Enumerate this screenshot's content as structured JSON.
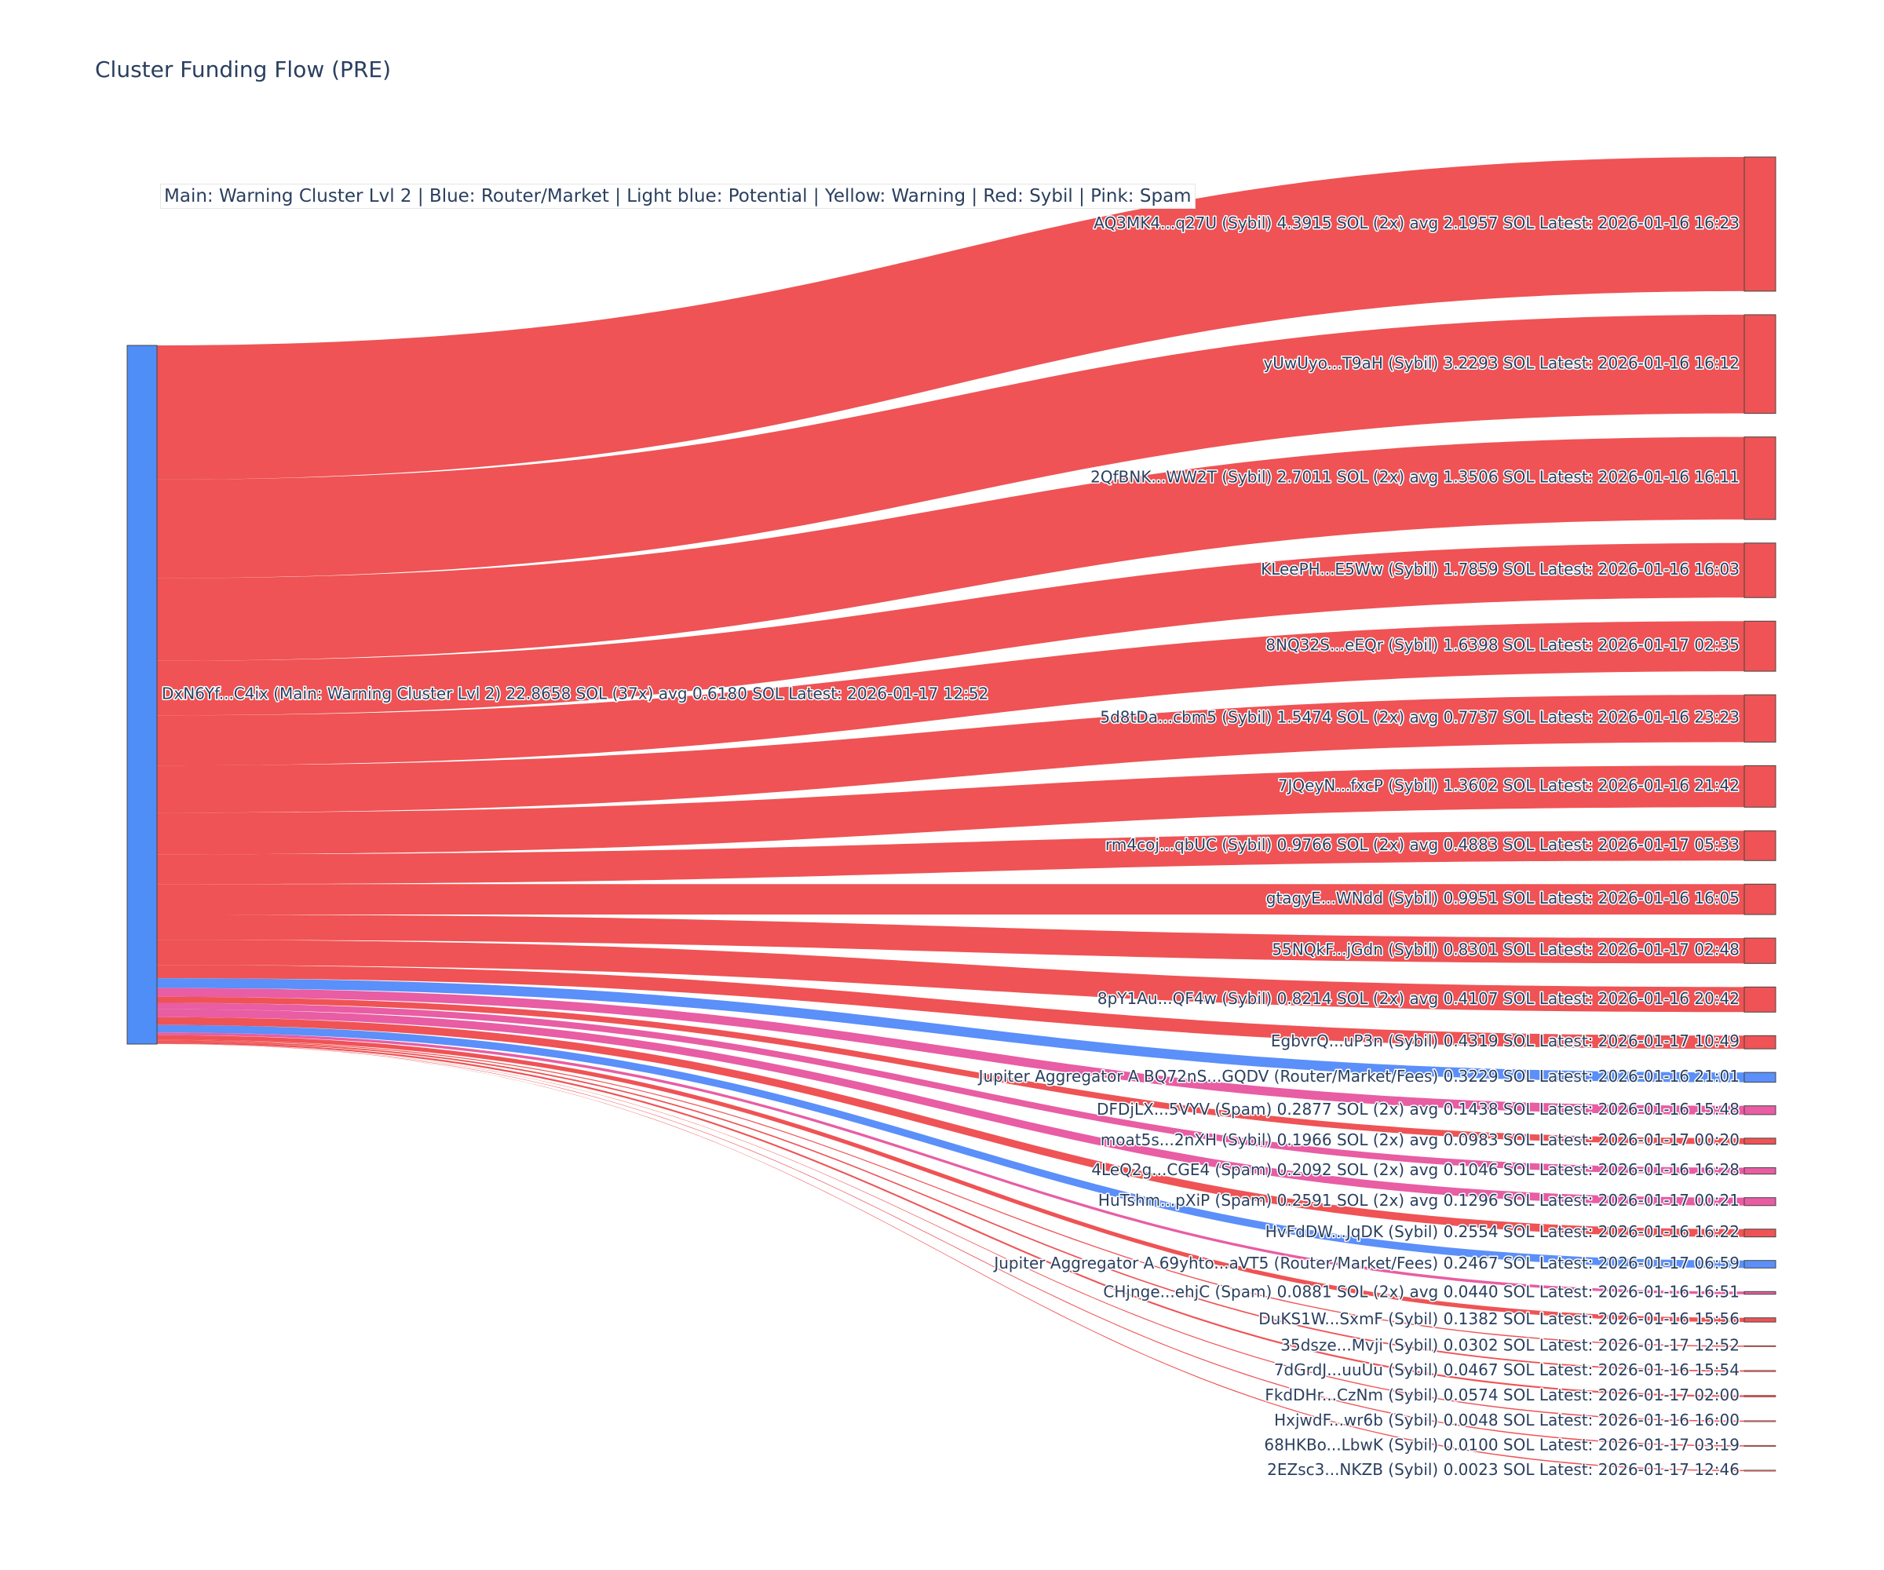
{
  "title": "Cluster Funding Flow (PRE)",
  "legend": "Main: Warning Cluster Lvl 2  |  Blue: Router/Market | Light blue: Potential | Yellow: Warning | Red: Sybil | Pink: Spam",
  "colors": {
    "router": "#5b8ff9",
    "sybil": "#ef5355",
    "spam": "#e85da3",
    "main": "#4f8ef7",
    "node_border": "#444444",
    "text": "#2a3f5f"
  },
  "chart_data": {
    "type": "sankey",
    "source": {
      "label": "DxN6Yf...C4ix (Main: Warning Cluster Lvl 2) 22.8658 SOL (37x) avg 0.6180 SOL Latest: 2026-01-17 12:52",
      "total": 22.8658,
      "category": "main"
    },
    "targets": [
      {
        "label": "AQ3MK4...q27U (Sybil) 4.3915 SOL (2x) avg 2.1957 SOL Latest: 2026-01-16 16:23",
        "value": 4.3915,
        "category": "sybil"
      },
      {
        "label": "yUwUyo...T9aH (Sybil) 3.2293 SOL Latest: 2026-01-16 16:12",
        "value": 3.2293,
        "category": "sybil"
      },
      {
        "label": "2QfBNK...WW2T (Sybil) 2.7011 SOL (2x) avg 1.3506 SOL Latest: 2026-01-16 16:11",
        "value": 2.7011,
        "category": "sybil"
      },
      {
        "label": "KLeePH...E5Ww (Sybil) 1.7859 SOL Latest: 2026-01-16 16:03",
        "value": 1.7859,
        "category": "sybil"
      },
      {
        "label": "8NQ32S...eEQr (Sybil) 1.6398 SOL Latest: 2026-01-17 02:35",
        "value": 1.6398,
        "category": "sybil"
      },
      {
        "label": "5d8tDa...cbm5 (Sybil) 1.5474 SOL (2x) avg 0.7737 SOL Latest: 2026-01-16 23:23",
        "value": 1.5474,
        "category": "sybil"
      },
      {
        "label": "7JQeyN...fxcP (Sybil) 1.3602 SOL Latest: 2026-01-16 21:42",
        "value": 1.3602,
        "category": "sybil"
      },
      {
        "label": "rm4coj...qbUC (Sybil) 0.9766 SOL (2x) avg 0.4883 SOL Latest: 2026-01-17 05:33",
        "value": 0.9766,
        "category": "sybil"
      },
      {
        "label": "gtagyE...WNdd (Sybil) 0.9951 SOL Latest: 2026-01-16 16:05",
        "value": 0.9951,
        "category": "sybil"
      },
      {
        "label": "55NQkF...jGdn (Sybil) 0.8301 SOL Latest: 2026-01-17 02:48",
        "value": 0.8301,
        "category": "sybil"
      },
      {
        "label": "8pY1Au...QF4w (Sybil) 0.8214 SOL (2x) avg 0.4107 SOL Latest: 2026-01-16 20:42",
        "value": 0.8214,
        "category": "sybil"
      },
      {
        "label": "EgbvrQ...uP3n (Sybil) 0.4319 SOL Latest: 2026-01-17 10:49",
        "value": 0.4319,
        "category": "sybil"
      },
      {
        "label": "Jupiter Aggregator A BQ72nS...GQDV (Router/Market/Fees) 0.3229 SOL Latest: 2026-01-16 21:01",
        "value": 0.3229,
        "category": "router"
      },
      {
        "label": "DFDjLX...5VYV (Spam) 0.2877 SOL (2x) avg 0.1438 SOL Latest: 2026-01-16 15:48",
        "value": 0.2877,
        "category": "spam"
      },
      {
        "label": "moat5s...2nXH (Sybil) 0.1966 SOL (2x) avg 0.0983 SOL Latest: 2026-01-17 00:20",
        "value": 0.1966,
        "category": "sybil"
      },
      {
        "label": "4LeQ2g...CGE4 (Spam) 0.2092 SOL (2x) avg 0.1046 SOL Latest: 2026-01-16 16:28",
        "value": 0.2092,
        "category": "spam"
      },
      {
        "label": "HuTshm...pXiP (Spam) 0.2591 SOL (2x) avg 0.1296 SOL Latest: 2026-01-17 00:21",
        "value": 0.2591,
        "category": "spam"
      },
      {
        "label": "HvFdDW...JqDK (Sybil) 0.2554 SOL Latest: 2026-01-16 16:22",
        "value": 0.2554,
        "category": "sybil"
      },
      {
        "label": "Jupiter Aggregator A 69yhto...aVT5 (Router/Market/Fees) 0.2467 SOL Latest: 2026-01-17 06:59",
        "value": 0.2467,
        "category": "router"
      },
      {
        "label": "CHjnge...ehjC (Spam) 0.0881 SOL (2x) avg 0.0440 SOL Latest: 2026-01-16 16:51",
        "value": 0.0881,
        "category": "spam"
      },
      {
        "label": "DuKS1W...SxmF (Sybil) 0.1382 SOL Latest: 2026-01-16 15:56",
        "value": 0.1382,
        "category": "sybil"
      },
      {
        "label": "35dsze...Mvji (Sybil) 0.0302 SOL Latest: 2026-01-17 12:52",
        "value": 0.0302,
        "category": "sybil"
      },
      {
        "label": "7dGrdJ...uuUu (Sybil) 0.0467 SOL Latest: 2026-01-16 15:54",
        "value": 0.0467,
        "category": "sybil"
      },
      {
        "label": "FkdDHr...CzNm (Sybil) 0.0574 SOL Latest: 2026-01-17 02:00",
        "value": 0.0574,
        "category": "sybil"
      },
      {
        "label": "HxjwdF...wr6b (Sybil) 0.0048 SOL Latest: 2026-01-16 16:00",
        "value": 0.0048,
        "category": "sybil"
      },
      {
        "label": "68HKBo...LbwK (Sybil) 0.0100 SOL Latest: 2026-01-17 03:19",
        "value": 0.01,
        "category": "sybil"
      },
      {
        "label": "2EZsc3...NKZB (Sybil) 0.0023 SOL Latest: 2026-01-17 12:46",
        "value": 0.0023,
        "category": "sybil"
      }
    ]
  }
}
